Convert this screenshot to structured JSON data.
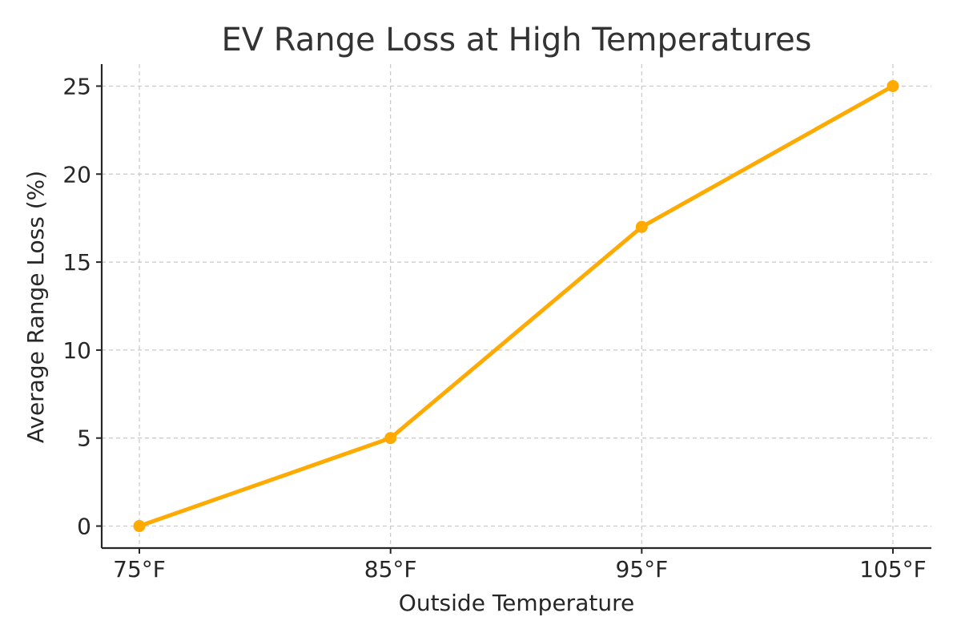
{
  "chart_data": {
    "type": "line",
    "title": "EV Range Loss at High Temperatures",
    "xlabel": "Outside Temperature",
    "ylabel": "Average Range Loss (%)",
    "categories": [
      "75°F",
      "85°F",
      "95°F",
      "105°F"
    ],
    "series": [
      {
        "values": [
          0,
          5,
          17,
          25
        ],
        "color": "#FFAA00"
      }
    ],
    "yticks": [
      0,
      5,
      10,
      15,
      20,
      25
    ],
    "ylim": [
      -1.25,
      26.25
    ],
    "grid": true,
    "legend": "none"
  }
}
